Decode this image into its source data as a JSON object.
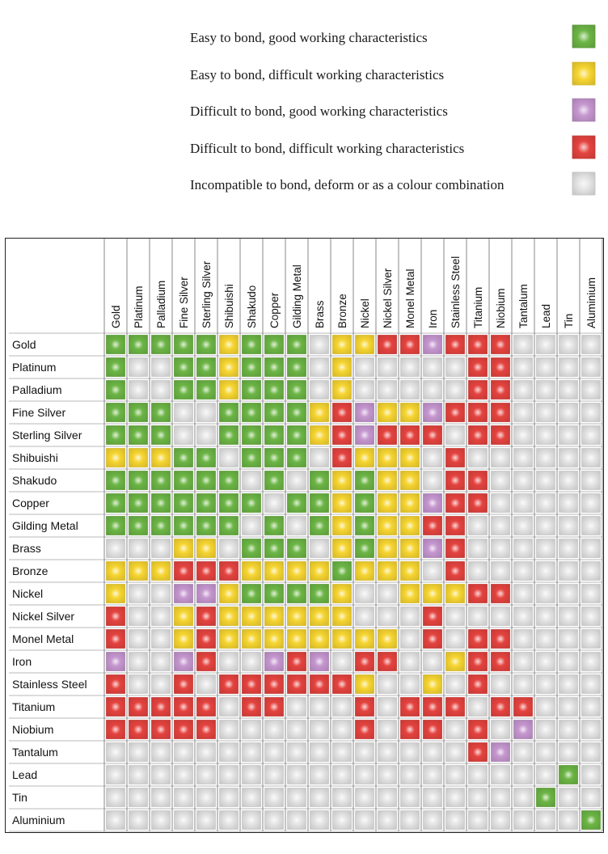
{
  "legend": [
    {
      "key": "G",
      "label": "Easy to bond, good working characteristics",
      "color": "#6cb545"
    },
    {
      "key": "Y",
      "label": "Easy to bond, difficult working characteristics",
      "color": "#f6d531"
    },
    {
      "key": "P",
      "label": "Difficult to bond, good working characteristics",
      "color": "#c596cf"
    },
    {
      "key": "R",
      "label": "Difficult to bond, difficult working characteristics",
      "color": "#e4433f"
    },
    {
      "key": "N",
      "label": "Incompatible to bond, deform or as a colour combination",
      "color": "#e4e4e4"
    }
  ],
  "chart_data": {
    "type": "heatmap",
    "metals": [
      "Gold",
      "Platinum",
      "Palladium",
      "Fine Silver",
      "Sterling Silver",
      "Shibuishi",
      "Shakudo",
      "Copper",
      "Gilding Metal",
      "Brass",
      "Bronze",
      "Nickel",
      "Nickel Silver",
      "Monel Metal",
      "Iron",
      "Stainless Steel",
      "Titanium",
      "Niobium",
      "Tantalum",
      "Lead",
      "Tin",
      "Aluminium"
    ],
    "matrix": [
      "GGGGGYGGGNYYRRPRRRNNNN",
      "GNNGGYGGGNYNNNNNRRNNNN",
      "GNNGGYGGGNYNNNNNRRNNNN",
      "GGGNNGGGGYRPYYPRRRNNNN",
      "GGGNNGGGGYRPRRRNRRNNNN",
      "YYYGGNGGGNRYYYNRNNNNNN",
      "GGGGGGNGNGYGYYNRRNNNNN",
      "GGGGGGGNGGYGYYPRRNNNNN",
      "GGGGGGNGNGYGYYRRNNNNNN",
      "NNNYYNGGGNYGYYPRNNNNNN",
      "YYYRRRYYYYGYYYNRNNNNNN",
      "YNNPPYGGGGYNNYYYRRNNNN",
      "RNNYRYYYYYYNNNRNNNNNNN",
      "RNNYRYYYYYYYYNRNRRNNNN",
      "PNNPRNNPRPNRRNNYRRNNNN",
      "RNNRNRRRRRRYNNYNRNNNNN",
      "RRRRRNRRNNNRNRRRNRRNNN",
      "RRRRRNNNNNNRNRRNRNPNNN",
      "NNNNNNNNNNNNNNNNRPNNNN",
      "NNNNNNNNNNNNNNNNNNNNGN",
      "NNNNNNNNNNNNNNNNNNNGNN",
      "NNNNNNNNNNNNNNNNNNNNNG"
    ]
  }
}
